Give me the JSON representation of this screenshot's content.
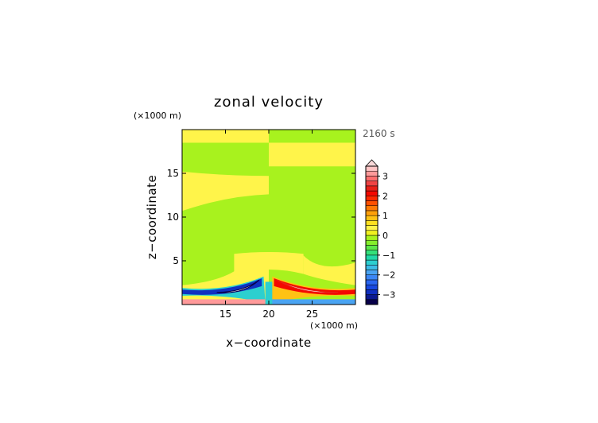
{
  "chart_data": {
    "type": "heatmap",
    "title": "zonal velocity",
    "xlabel": "x−coordinate",
    "ylabel": "z−coordinate",
    "x_unit": "(×1000 m)",
    "y_unit": "(×1000 m)",
    "time_label": "2160 s",
    "xlim": [
      10,
      30
    ],
    "ylim": [
      0,
      20
    ],
    "x_ticks": [
      15,
      20,
      25
    ],
    "y_ticks": [
      5,
      10,
      15
    ],
    "x_tick_labels": [
      "15",
      "20",
      "25"
    ],
    "y_tick_labels": [
      "5",
      "10",
      "15"
    ],
    "colorbar": {
      "levels": [
        -3.5,
        -3.25,
        -3,
        -2.75,
        -2.5,
        -2.25,
        -2,
        -1.75,
        -1.5,
        -1.25,
        -1,
        -0.75,
        -0.5,
        -0.25,
        0,
        0.25,
        0.5,
        0.75,
        1,
        1.25,
        1.5,
        1.75,
        2,
        2.25,
        2.5,
        2.75,
        3,
        3.25,
        3.5
      ],
      "colors": [
        "#08004a",
        "#0c1a90",
        "#1030c0",
        "#1848e0",
        "#2a66f0",
        "#3c86f5",
        "#4aa4f2",
        "#3cbce6",
        "#2ccfcf",
        "#22d8a8",
        "#34e07a",
        "#5ce84a",
        "#86ee2c",
        "#a8f21e",
        "#f0f020",
        "#fff44a",
        "#ffe020",
        "#ffc214",
        "#ffa00a",
        "#ff7a04",
        "#ff5000",
        "#ff2800",
        "#f40800",
        "#e82018",
        "#f04444",
        "#ff6e6e",
        "#ff9a9a",
        "#ffc4c4"
      ],
      "tick_values": [
        -3,
        -2,
        -1,
        0,
        1,
        2,
        3
      ],
      "tick_labels": [
        "−3",
        "−2",
        "−1",
        "0",
        "1",
        "2",
        "3"
      ],
      "extend": "max"
    },
    "colors": {
      "pos_weak": "#fff44a",
      "neg_weak": "#a8f21e",
      "pos_strong": "#ffffff",
      "neg_strong": "#ffffff"
    }
  }
}
